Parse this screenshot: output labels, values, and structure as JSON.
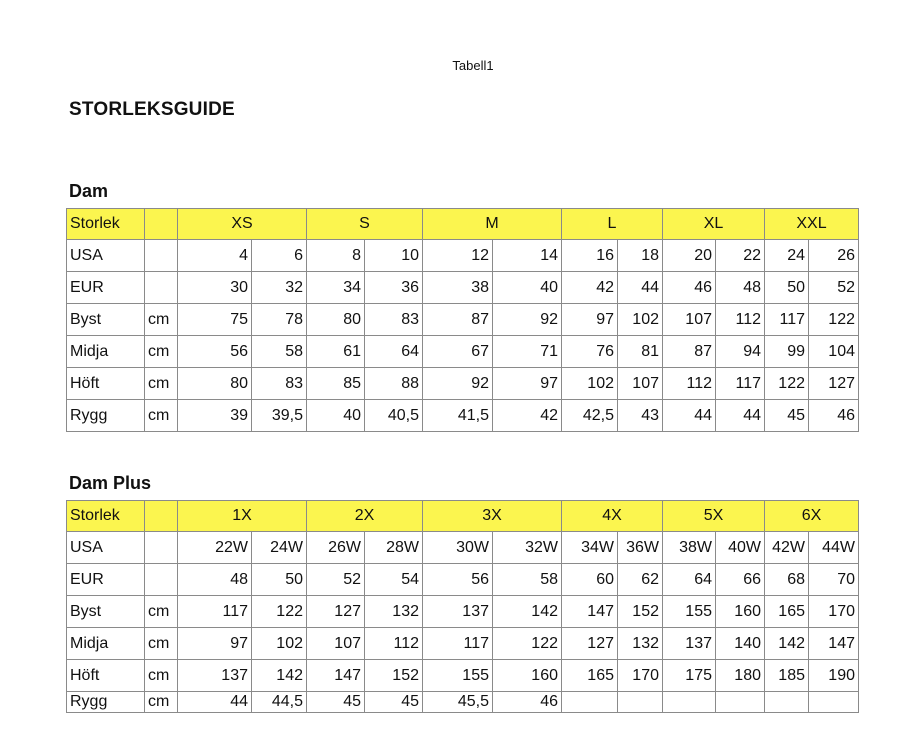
{
  "caption": "Tabell1",
  "title": "STORLEKSGUIDE",
  "header_color": "#fbf54f",
  "tables": [
    {
      "section": "Dam",
      "header_label": "Storlek",
      "sizes": [
        "XS",
        "S",
        "M",
        "L",
        "XL",
        "XXL"
      ],
      "rows": [
        {
          "label": "USA",
          "unit": "",
          "values": [
            "4",
            "6",
            "8",
            "10",
            "12",
            "14",
            "16",
            "18",
            "20",
            "22",
            "24",
            "26"
          ]
        },
        {
          "label": "EUR",
          "unit": "",
          "values": [
            "30",
            "32",
            "34",
            "36",
            "38",
            "40",
            "42",
            "44",
            "46",
            "48",
            "50",
            "52"
          ]
        },
        {
          "label": "Byst",
          "unit": "cm",
          "values": [
            "75",
            "78",
            "80",
            "83",
            "87",
            "92",
            "97",
            "102",
            "107",
            "112",
            "117",
            "122"
          ]
        },
        {
          "label": "Midja",
          "unit": "cm",
          "values": [
            "56",
            "58",
            "61",
            "64",
            "67",
            "71",
            "76",
            "81",
            "87",
            "94",
            "99",
            "104"
          ]
        },
        {
          "label": "Höft",
          "unit": "cm",
          "values": [
            "80",
            "83",
            "85",
            "88",
            "92",
            "97",
            "102",
            "107",
            "112",
            "117",
            "122",
            "127"
          ]
        },
        {
          "label": "Rygg",
          "unit": "cm",
          "values": [
            "39",
            "39,5",
            "40",
            "40,5",
            "41,5",
            "42",
            "42,5",
            "43",
            "44",
            "44",
            "45",
            "46"
          ]
        }
      ]
    },
    {
      "section": "Dam Plus",
      "header_label": "Storlek",
      "sizes": [
        "1X",
        "2X",
        "3X",
        "4X",
        "5X",
        "6X"
      ],
      "rows": [
        {
          "label": "USA",
          "unit": "",
          "values": [
            "22W",
            "24W",
            "26W",
            "28W",
            "30W",
            "32W",
            "34W",
            "36W",
            "38W",
            "40W",
            "42W",
            "44W"
          ]
        },
        {
          "label": "EUR",
          "unit": "",
          "values": [
            "48",
            "50",
            "52",
            "54",
            "56",
            "58",
            "60",
            "62",
            "64",
            "66",
            "68",
            "70"
          ]
        },
        {
          "label": "Byst",
          "unit": "cm",
          "values": [
            "117",
            "122",
            "127",
            "132",
            "137",
            "142",
            "147",
            "152",
            "155",
            "160",
            "165",
            "170"
          ]
        },
        {
          "label": "Midja",
          "unit": "cm",
          "values": [
            "97",
            "102",
            "107",
            "112",
            "117",
            "122",
            "127",
            "132",
            "137",
            "140",
            "142",
            "147"
          ]
        },
        {
          "label": "Höft",
          "unit": "cm",
          "values": [
            "137",
            "142",
            "147",
            "152",
            "155",
            "160",
            "165",
            "170",
            "175",
            "180",
            "185",
            "190"
          ]
        },
        {
          "label": "Rygg",
          "unit": "cm",
          "values": [
            "44",
            "44,5",
            "45",
            "45",
            "45,5",
            "46",
            "",
            "",
            "",
            "",
            "",
            ""
          ]
        }
      ]
    }
  ]
}
